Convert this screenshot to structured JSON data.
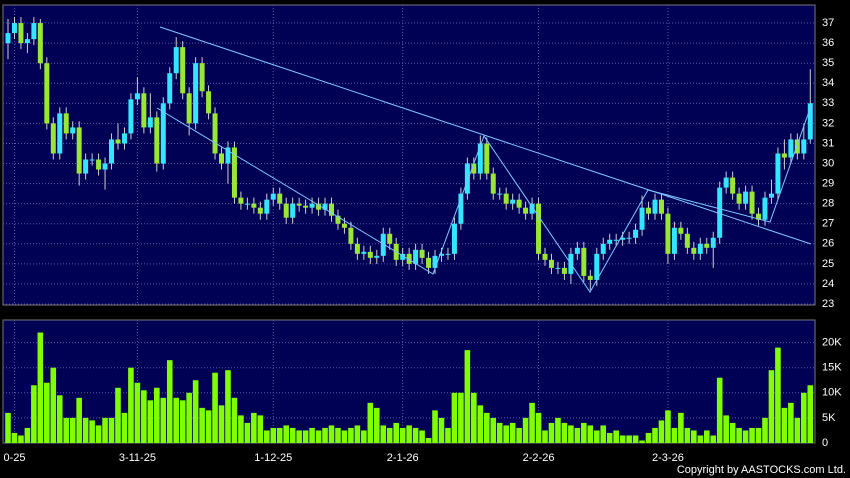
{
  "chart_data": {
    "type": "candlestick",
    "categories": [
      null,
      "0-25",
      null,
      null,
      null,
      null,
      null,
      null,
      null,
      null,
      null,
      null,
      null,
      null,
      null,
      null,
      null,
      null,
      null,
      null,
      "3-11-25",
      null,
      null,
      null,
      null,
      null,
      null,
      null,
      null,
      null,
      null,
      null,
      null,
      null,
      null,
      null,
      null,
      null,
      null,
      null,
      null,
      "1-12-25",
      null,
      null,
      null,
      null,
      null,
      null,
      null,
      null,
      null,
      null,
      null,
      null,
      null,
      null,
      null,
      null,
      null,
      null,
      null,
      "2-1-26",
      null,
      null,
      null,
      null,
      null,
      null,
      null,
      null,
      null,
      null,
      null,
      null,
      null,
      null,
      null,
      null,
      null,
      null,
      null,
      null,
      "2-2-26",
      null,
      null,
      null,
      null,
      null,
      null,
      null,
      null,
      null,
      null,
      null,
      null,
      null,
      null,
      null,
      null,
      null,
      null,
      null,
      "2-3-26",
      null,
      null,
      null,
      null,
      null,
      null,
      null,
      null,
      null,
      null,
      null,
      null,
      null,
      null,
      null,
      null,
      null,
      null,
      null,
      null,
      null,
      null
    ],
    "open": [
      36,
      36.5,
      37,
      36,
      36.2,
      37,
      35,
      32,
      30.5,
      32.5,
      31.5,
      31.8,
      29.5,
      30.2,
      30.2,
      29.7,
      30,
      31.2,
      31,
      31.5,
      33.2,
      33.5,
      31.8,
      32.3,
      30,
      33,
      34.5,
      35.8,
      33.5,
      32,
      35,
      33.6,
      32.5,
      30.5,
      30,
      30.8,
      28.3,
      28,
      28,
      27.8,
      27.5,
      28.2,
      28.5,
      28,
      27.3,
      28,
      27.9,
      27.8,
      28,
      27.7,
      28,
      27.4,
      27,
      26.8,
      26,
      25.5,
      25.6,
      25.3,
      25.4,
      26.5,
      26,
      25.2,
      25.5,
      25,
      25.7,
      25.3,
      24.8,
      25.4,
      25.5,
      25.5,
      27,
      28.5,
      30,
      29.5,
      31,
      29.5,
      28.5,
      28.5,
      28,
      28.2,
      27.8,
      27.5,
      28,
      25.5,
      25.2,
      24.8,
      24.8,
      24.5,
      25.5,
      25.8,
      24.4,
      24.2,
      25.5,
      26,
      26.2,
      26.2,
      26.3,
      26.3,
      26.7,
      27.8,
      27.5,
      28.2,
      27.5,
      25.5,
      26.8,
      26.5,
      25.8,
      25.5,
      26,
      25.8,
      26.3,
      28.8,
      29.3,
      28.5,
      28,
      28.6,
      27.5,
      27.2,
      28.3,
      28.5,
      30.5,
      30.3,
      31.2,
      30.5,
      31.2
    ],
    "high": [
      37.2,
      37.3,
      37.3,
      36.5,
      37.3,
      37.2,
      35.3,
      32.3,
      32.8,
      32.8,
      32.1,
      32.1,
      30.5,
      30.5,
      30.5,
      30.3,
      31.5,
      32,
      31.8,
      33.5,
      34.3,
      33.8,
      33.5,
      32.6,
      33.3,
      34.8,
      36.3,
      36.1,
      33.8,
      35.3,
      35.3,
      33.9,
      32.8,
      30.8,
      31.1,
      31.1,
      28.6,
      28.3,
      28.3,
      28.1,
      28.5,
      28.8,
      28.8,
      28.3,
      28.3,
      28.3,
      28.2,
      28.3,
      28.3,
      28.3,
      28.3,
      27.7,
      27.3,
      27.1,
      26.3,
      25.9,
      25.9,
      25.7,
      26.8,
      26.8,
      26.3,
      25.8,
      25.8,
      26,
      26,
      25.6,
      25.7,
      25.8,
      25.8,
      27.3,
      28.8,
      30.3,
      30.3,
      31.4,
      31.3,
      29.8,
      28.8,
      28.8,
      28.5,
      28.5,
      28.1,
      28.3,
      28.3,
      25.8,
      25.5,
      25.1,
      25.1,
      25.8,
      26.1,
      26.1,
      24.7,
      25.8,
      26.3,
      26.5,
      26.5,
      26.6,
      26.6,
      27,
      28.4,
      28.1,
      28.5,
      28.5,
      27.8,
      27.1,
      27.1,
      26.8,
      26.1,
      26.3,
      26.3,
      26.6,
      29.1,
      29.6,
      29.6,
      28.8,
      28.9,
      28.9,
      27.8,
      28.6,
      29.2,
      30.8,
      31.2,
      31.5,
      31.5,
      32,
      34.7
    ],
    "low": [
      35.2,
      36.2,
      35.7,
      35.5,
      35.9,
      34.7,
      31.7,
      30.2,
      30.2,
      31.2,
      31.2,
      28.9,
      29.2,
      29.9,
      29.4,
      28.7,
      29.7,
      30.7,
      30.7,
      31.2,
      32.9,
      31.5,
      31.5,
      29.6,
      29.7,
      32.7,
      34.2,
      33.2,
      31.4,
      31.7,
      33.3,
      32.2,
      30.2,
      29.7,
      29,
      28,
      27.7,
      27.7,
      27.5,
      27.2,
      27.2,
      27.9,
      27.7,
      27,
      27,
      27.6,
      27.5,
      27.5,
      27.4,
      27.4,
      27.1,
      26.7,
      26.5,
      25.7,
      25.2,
      25.2,
      25,
      25,
      25.1,
      25.7,
      24.9,
      24.9,
      24.7,
      24.7,
      25,
      24.5,
      24.5,
      25.1,
      25.2,
      25.2,
      26.7,
      28.2,
      29.2,
      29.2,
      29.2,
      28.2,
      28.2,
      27.7,
      27.7,
      27.5,
      27.2,
      27.2,
      25.2,
      24.9,
      24.5,
      24.5,
      24.2,
      24,
      25.2,
      24.1,
      23.7,
      23.9,
      25.2,
      25.7,
      25.9,
      25.9,
      26,
      26,
      26.4,
      27.2,
      27.2,
      27.2,
      25,
      25.2,
      26.2,
      25.5,
      25.2,
      25.2,
      25.5,
      24.8,
      26,
      28.5,
      28.2,
      27.7,
      27.7,
      27.2,
      26.9,
      26.9,
      28,
      28.2,
      29.7,
      30,
      30.2,
      30.2,
      31
    ],
    "close": [
      36.5,
      37,
      36,
      36.2,
      37,
      35,
      32,
      30.5,
      32.5,
      31.5,
      31.8,
      29.5,
      30.2,
      30.2,
      29.7,
      30,
      31.2,
      31,
      31.5,
      33.2,
      33.5,
      31.8,
      32.3,
      30,
      33,
      34.5,
      35.8,
      33.5,
      32,
      35,
      33.6,
      32.5,
      30.5,
      30,
      30.8,
      28.3,
      28,
      28,
      27.8,
      27.5,
      28.2,
      28.5,
      28,
      27.3,
      28,
      27.9,
      27.8,
      28,
      27.7,
      28,
      27.4,
      27,
      26.8,
      26,
      25.5,
      25.6,
      25.3,
      25.4,
      26.5,
      26,
      25.2,
      25.5,
      25,
      25.7,
      25.3,
      24.8,
      25.4,
      25.5,
      25.5,
      27,
      28.5,
      30,
      29.5,
      31,
      29.5,
      28.5,
      28.5,
      28,
      28.2,
      27.8,
      27.5,
      28,
      25.5,
      25.2,
      24.8,
      24.8,
      24.5,
      25.5,
      25.8,
      24.4,
      24.2,
      25.5,
      26,
      26.2,
      26.2,
      26.3,
      26.3,
      26.7,
      27.8,
      27.5,
      28.2,
      27.5,
      25.5,
      26.8,
      26.5,
      25.8,
      25.5,
      26,
      25.8,
      26.3,
      28.8,
      29.3,
      28.5,
      28,
      28.6,
      27.5,
      27.2,
      28.3,
      28.5,
      30.5,
      30.3,
      31.2,
      30.5,
      31.2,
      33
    ],
    "up_color": "#33e6ff",
    "down_color": "#99e633",
    "ylim": [
      22.95,
      37.9
    ],
    "yticks": [
      23,
      24,
      25,
      26,
      27,
      28,
      29,
      30,
      31,
      32,
      33,
      34,
      35,
      36,
      37
    ],
    "grid": true,
    "volume": {
      "color": "#80ff00",
      "ylim": [
        0,
        24500
      ],
      "yticks": [
        0,
        {
          "value": 5000,
          "label": "5K"
        },
        {
          "value": 10000,
          "label": "10K"
        },
        {
          "value": 15000,
          "label": "15K"
        },
        {
          "value": 20000,
          "label": "20K"
        }
      ],
      "values": [
        6000,
        2000,
        1500,
        3000,
        11500,
        22000,
        12000,
        15000,
        9500,
        5000,
        5000,
        9000,
        5000,
        4500,
        3500,
        5000,
        5000,
        11000,
        6000,
        15000,
        12000,
        10500,
        8500,
        11000,
        9000,
        16500,
        9000,
        8500,
        10000,
        12500,
        7000,
        6500,
        14000,
        7500,
        14500,
        9000,
        5500,
        4000,
        6000,
        5500,
        2500,
        3000,
        3000,
        3500,
        3000,
        2500,
        2500,
        3000,
        2500,
        3000,
        3500,
        3000,
        2500,
        3000,
        3500,
        2500,
        8000,
        7000,
        3500,
        3000,
        4000,
        3000,
        3500,
        3000,
        2500,
        1000,
        6500,
        5000,
        3000,
        10000,
        10000,
        18500,
        10000,
        7500,
        6000,
        5000,
        4000,
        3500,
        4000,
        3000,
        5000,
        8000,
        6000,
        2500,
        4000,
        5000,
        4000,
        3500,
        3000,
        4000,
        3500,
        2500,
        3500,
        2000,
        2500,
        1500,
        1500,
        1500,
        500,
        2000,
        3000,
        4500,
        6500,
        3000,
        6000,
        3000,
        2500,
        1500,
        2500,
        1500,
        13000,
        5500,
        4000,
        3000,
        2500,
        3000,
        3000,
        5000,
        14500,
        19000,
        7000,
        8000,
        5000,
        10000,
        11500
      ]
    },
    "credit": "Copyright by AASTOCKS.com Ltd."
  }
}
